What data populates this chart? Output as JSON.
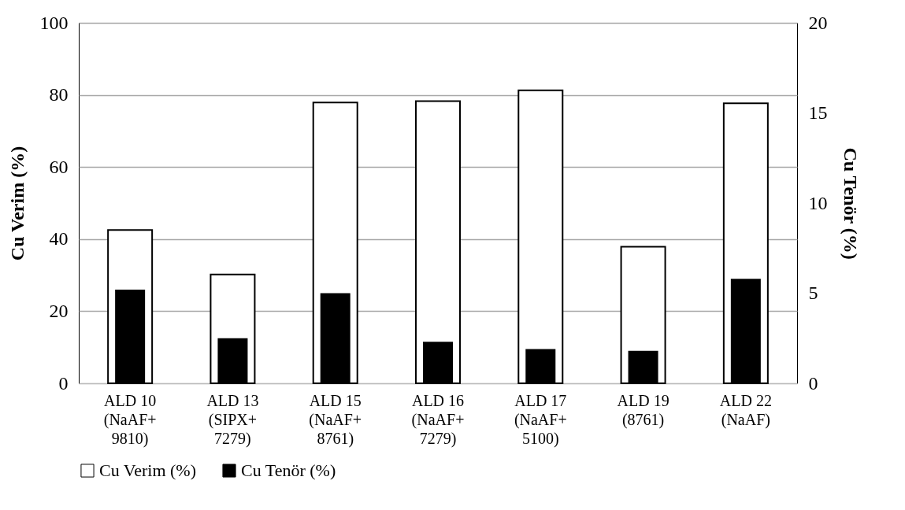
{
  "chart_data": {
    "type": "bar",
    "categories": [
      "ALD 10\n(NaAF+\n9810)",
      "ALD 13\n(SIPX+\n7279)",
      "ALD 15\n(NaAF+\n8761)",
      "ALD 16\n(NaAF+\n7279)",
      "ALD 17\n(NaAF+\n5100)",
      "ALD 19\n(8761)",
      "ALD 22\n(NaAF)"
    ],
    "series": [
      {
        "name": "Cu Verim (%)",
        "color": "#ffffff",
        "values": [
          42.5,
          30.2,
          77.9,
          78.3,
          81.3,
          37.9,
          77.7
        ]
      },
      {
        "name": "Cu Tenör (%)",
        "color": "#000000",
        "axis": "y2",
        "values": [
          5.2,
          2.5,
          5.0,
          2.3,
          1.9,
          1.8,
          5.8
        ]
      }
    ],
    "ylabel": "Cu Verim (%)",
    "y2label": "Cu Tenör (%)",
    "ylim": [
      0,
      100
    ],
    "yticks": [
      0,
      20,
      40,
      60,
      80,
      100
    ],
    "y2lim": [
      0,
      20
    ],
    "y2ticks": [
      0,
      5,
      10,
      15,
      20
    ],
    "grid": "y",
    "legend": "bottom"
  }
}
